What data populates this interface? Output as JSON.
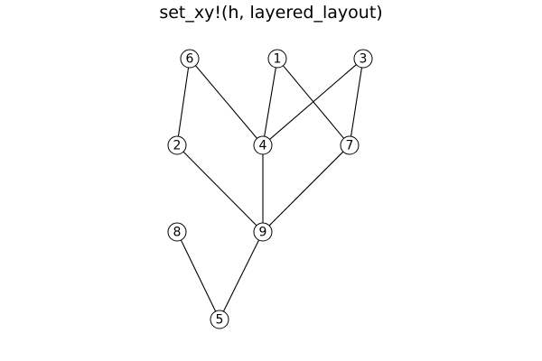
{
  "title": "set_xy!(h, layered_layout)",
  "colors": {
    "background": "#ffffff",
    "stroke": "#000000",
    "node_fill": "#ffffff"
  },
  "nodes": [
    {
      "id": "1",
      "label": "1"
    },
    {
      "id": "2",
      "label": "2"
    },
    {
      "id": "3",
      "label": "3"
    },
    {
      "id": "4",
      "label": "4"
    },
    {
      "id": "5",
      "label": "5"
    },
    {
      "id": "6",
      "label": "6"
    },
    {
      "id": "7",
      "label": "7"
    },
    {
      "id": "8",
      "label": "8"
    },
    {
      "id": "9",
      "label": "9"
    }
  ],
  "edges": [
    {
      "source": "6",
      "target": "2"
    },
    {
      "source": "6",
      "target": "4"
    },
    {
      "source": "1",
      "target": "4"
    },
    {
      "source": "1",
      "target": "7"
    },
    {
      "source": "3",
      "target": "4"
    },
    {
      "source": "3",
      "target": "7"
    },
    {
      "source": "2",
      "target": "9"
    },
    {
      "source": "4",
      "target": "9"
    },
    {
      "source": "7",
      "target": "9"
    },
    {
      "source": "8",
      "target": "5"
    },
    {
      "source": "9",
      "target": "5"
    }
  ]
}
